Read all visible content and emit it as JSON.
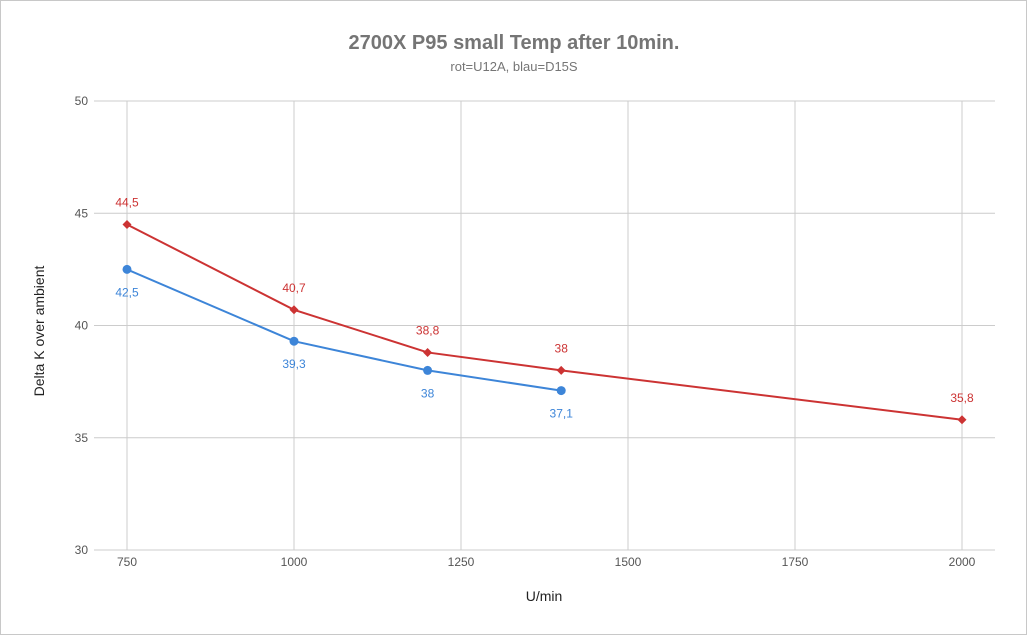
{
  "chart_data": {
    "type": "line",
    "title": "2700X P95 small Temp after 10min.",
    "subtitle": "rot=U12A, blau=D15S",
    "xlabel": "U/min",
    "ylabel": "Delta K over ambient",
    "xlim": [
      700,
      2100
    ],
    "ylim": [
      30,
      50
    ],
    "x_ticks": [
      "750",
      "1000",
      "1250",
      "1500",
      "1750",
      "2000"
    ],
    "y_ticks": [
      "30",
      "35",
      "40",
      "45",
      "50"
    ],
    "grid": true,
    "series": [
      {
        "name": "U12A",
        "color": "#cc3333",
        "marker": "diamond",
        "x": [
          750,
          1000,
          1200,
          1400,
          2000
        ],
        "values": [
          44.5,
          40.7,
          38.8,
          38,
          35.8
        ],
        "labels": [
          "44,5",
          "40,7",
          "38,8",
          "38",
          "35,8"
        ],
        "label_position": "above"
      },
      {
        "name": "D15S",
        "color": "#3d85d8",
        "marker": "circle",
        "x": [
          750,
          1000,
          1200,
          1400
        ],
        "values": [
          42.5,
          39.3,
          38,
          37.1
        ],
        "labels": [
          "42,5",
          "39,3",
          "38",
          "37,1"
        ],
        "label_position": "below"
      }
    ]
  }
}
